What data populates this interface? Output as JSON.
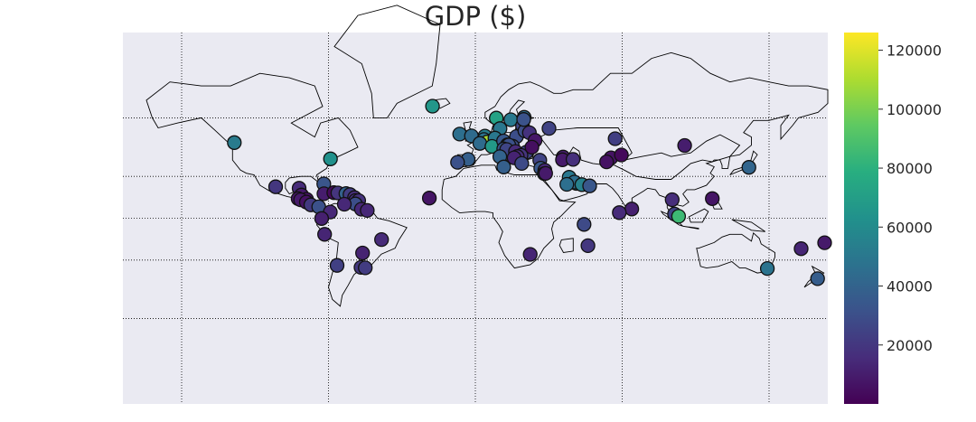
{
  "title": "GDP ($)",
  "colorbar": {
    "colormap": "viridis",
    "vmin": 0,
    "vmax": 126000,
    "ticks": [
      20000,
      40000,
      60000,
      80000,
      100000,
      120000
    ],
    "tick_labels": [
      "20000",
      "40000",
      "60000",
      "80000",
      "100000",
      "120000"
    ]
  },
  "map": {
    "projection": "mercator",
    "background": "#eaeaf2",
    "coastline_color": "#000000",
    "border_color": "#555555",
    "gridline_style": "dotted",
    "lon_range": [
      -180,
      180
    ],
    "lat_range": [
      -80,
      80
    ],
    "meridians": [
      -150,
      -75,
      0,
      75,
      150
    ],
    "parallels": [
      -60,
      -30,
      0,
      30,
      60
    ]
  },
  "chart_data": {
    "type": "scatter",
    "title": "GDP ($)",
    "xlabel": "",
    "ylabel": "",
    "x": "longitude",
    "y": "latitude",
    "color_value": "GDP ($)",
    "points": [
      {
        "lon": -21.9,
        "lat": 64.1,
        "gdp": 66000
      },
      {
        "lon": -123.1,
        "lat": 49.3,
        "gdp": 52000
      },
      {
        "lon": -74.0,
        "lat": 40.7,
        "gdp": 63000
      },
      {
        "lon": -77.4,
        "lat": 25.0,
        "gdp": 33000
      },
      {
        "lon": -90.0,
        "lat": 22.0,
        "gdp": 15000
      },
      {
        "lon": -102.0,
        "lat": 23.0,
        "gdp": 20000
      },
      {
        "lon": -88.8,
        "lat": 17.2,
        "gdp": 9000
      },
      {
        "lon": -90.5,
        "lat": 14.6,
        "gdp": 8000
      },
      {
        "lon": -86.2,
        "lat": 14.1,
        "gdp": 6000
      },
      {
        "lon": -89.2,
        "lat": 13.7,
        "gdp": 9000
      },
      {
        "lon": -86.3,
        "lat": 12.1,
        "gdp": 6000
      },
      {
        "lon": -84.0,
        "lat": 10.0,
        "gdp": 21000
      },
      {
        "lon": -80.0,
        "lat": 8.5,
        "gdp": 31000
      },
      {
        "lon": -77.3,
        "lat": 18.1,
        "gdp": 10000
      },
      {
        "lon": -72.3,
        "lat": 18.9,
        "gdp": 3000
      },
      {
        "lon": -70.2,
        "lat": 18.7,
        "gdp": 19000
      },
      {
        "lon": -66.1,
        "lat": 18.2,
        "gdp": 39000
      },
      {
        "lon": -64.0,
        "lat": 17.5,
        "gdp": 22000
      },
      {
        "lon": -61.7,
        "lat": 15.3,
        "gdp": 16000
      },
      {
        "lon": -61.2,
        "lat": 13.2,
        "gdp": 17000
      },
      {
        "lon": -59.6,
        "lat": 13.1,
        "gdp": 18000
      },
      {
        "lon": -61.3,
        "lat": 10.7,
        "gdp": 30000
      },
      {
        "lon": -66.9,
        "lat": 10.5,
        "gdp": 14000
      },
      {
        "lon": -58.2,
        "lat": 6.8,
        "gdp": 14000
      },
      {
        "lon": -55.2,
        "lat": 5.8,
        "gdp": 14000
      },
      {
        "lon": -74.1,
        "lat": 4.7,
        "gdp": 14000
      },
      {
        "lon": -78.5,
        "lat": -0.2,
        "gdp": 11000
      },
      {
        "lon": -77.0,
        "lat": -12.0,
        "gdp": 13000
      },
      {
        "lon": -47.9,
        "lat": -15.8,
        "gdp": 15000
      },
      {
        "lon": -57.6,
        "lat": -25.3,
        "gdp": 12000
      },
      {
        "lon": -70.6,
        "lat": -33.4,
        "gdp": 24000
      },
      {
        "lon": -58.4,
        "lat": -34.6,
        "gdp": 20000
      },
      {
        "lon": -56.2,
        "lat": -34.9,
        "gdp": 22000
      },
      {
        "lon": -8.0,
        "lat": 53.3,
        "gdp": 46000
      },
      {
        "lon": -2.0,
        "lat": 52.5,
        "gdp": 44000
      },
      {
        "lon": 10.7,
        "lat": 59.9,
        "gdp": 72000
      },
      {
        "lon": 18.1,
        "lat": 59.3,
        "gdp": 51000
      },
      {
        "lon": 24.9,
        "lat": 60.2,
        "gdp": 45000
      },
      {
        "lon": 4.9,
        "lat": 52.4,
        "gdp": 53000
      },
      {
        "lon": 4.4,
        "lat": 50.8,
        "gdp": 48000
      },
      {
        "lon": 6.1,
        "lat": 49.6,
        "gdp": 110000
      },
      {
        "lon": 2.3,
        "lat": 48.9,
        "gdp": 44000
      },
      {
        "lon": 12.6,
        "lat": 55.7,
        "gdp": 50000
      },
      {
        "lon": 10.0,
        "lat": 51.5,
        "gdp": 50000
      },
      {
        "lon": 8.5,
        "lat": 47.4,
        "gdp": 68000
      },
      {
        "lon": 14.4,
        "lat": 50.1,
        "gdp": 35000
      },
      {
        "lon": 16.4,
        "lat": 48.2,
        "gdp": 52000
      },
      {
        "lon": 21.0,
        "lat": 52.2,
        "gdp": 30000
      },
      {
        "lon": 19.0,
        "lat": 47.5,
        "gdp": 30000
      },
      {
        "lon": 17.1,
        "lat": 48.1,
        "gdp": 31000
      },
      {
        "lon": 14.5,
        "lat": 46.1,
        "gdp": 34000
      },
      {
        "lon": 16.0,
        "lat": 45.8,
        "gdp": 26000
      },
      {
        "lon": 20.5,
        "lat": 44.8,
        "gdp": 15000
      },
      {
        "lon": 26.1,
        "lat": 44.4,
        "gdp": 25000
      },
      {
        "lon": 23.3,
        "lat": 42.7,
        "gdp": 19000
      },
      {
        "lon": 21.4,
        "lat": 42.0,
        "gdp": 15000
      },
      {
        "lon": 19.8,
        "lat": 41.3,
        "gdp": 12000
      },
      {
        "lon": 12.5,
        "lat": 41.9,
        "gdp": 40000
      },
      {
        "lon": -3.7,
        "lat": 40.4,
        "gdp": 38000
      },
      {
        "lon": -9.1,
        "lat": 38.7,
        "gdp": 31000
      },
      {
        "lon": 14.5,
        "lat": 35.9,
        "gdp": 38000
      },
      {
        "lon": 23.7,
        "lat": 38.0,
        "gdp": 28000
      },
      {
        "lon": 24.1,
        "lat": 56.9,
        "gdp": 27000
      },
      {
        "lon": 25.3,
        "lat": 54.7,
        "gdp": 30000
      },
      {
        "lon": 24.7,
        "lat": 59.4,
        "gdp": 32000
      },
      {
        "lon": 27.6,
        "lat": 53.9,
        "gdp": 18000
      },
      {
        "lon": 30.5,
        "lat": 50.4,
        "gdp": 8000
      },
      {
        "lon": 28.9,
        "lat": 47.0,
        "gdp": 5000
      },
      {
        "lon": 37.6,
        "lat": 55.8,
        "gdp": 25000
      },
      {
        "lon": 32.9,
        "lat": 39.9,
        "gdp": 25000
      },
      {
        "lon": 44.8,
        "lat": 41.7,
        "gdp": 10000
      },
      {
        "lon": 44.5,
        "lat": 40.2,
        "gdp": 9000
      },
      {
        "lon": 49.9,
        "lat": 40.4,
        "gdp": 17000
      },
      {
        "lon": 33.4,
        "lat": 35.2,
        "gdp": 34000
      },
      {
        "lon": 35.5,
        "lat": 33.9,
        "gdp": 14000
      },
      {
        "lon": 35.2,
        "lat": 31.8,
        "gdp": 36000
      },
      {
        "lon": 35.9,
        "lat": 31.9,
        "gdp": 9000
      },
      {
        "lon": 51.5,
        "lat": 25.3,
        "gdp": 60000
      },
      {
        "lon": 47.9,
        "lat": 29.4,
        "gdp": 50000
      },
      {
        "lon": 50.6,
        "lat": 26.2,
        "gdp": 45000
      },
      {
        "lon": 54.4,
        "lat": 24.5,
        "gdp": 55000
      },
      {
        "lon": 46.7,
        "lat": 24.7,
        "gdp": 46000
      },
      {
        "lon": 58.4,
        "lat": 23.6,
        "gdp": 34000
      },
      {
        "lon": 69.3,
        "lat": 41.3,
        "gdp": 6000
      },
      {
        "lon": 74.6,
        "lat": 42.9,
        "gdp": 3000
      },
      {
        "lon": 71.4,
        "lat": 51.2,
        "gdp": 23000
      },
      {
        "lon": 106.9,
        "lat": 47.9,
        "gdp": 10000
      },
      {
        "lon": 67.0,
        "lat": 39.0,
        "gdp": 6000
      },
      {
        "lon": 79.9,
        "lat": 6.9,
        "gdp": 11000
      },
      {
        "lon": 73.5,
        "lat": 4.2,
        "gdp": 15000
      },
      {
        "lon": 100.5,
        "lat": 13.8,
        "gdp": 16000
      },
      {
        "lon": 101.7,
        "lat": 3.1,
        "gdp": 25000
      },
      {
        "lon": 103.8,
        "lat": 1.4,
        "gdp": 85000
      },
      {
        "lon": 121.0,
        "lat": 14.6,
        "gdp": 7000
      },
      {
        "lon": 139.7,
        "lat": 35.7,
        "gdp": 41000
      },
      {
        "lon": 149.1,
        "lat": -35.3,
        "gdp": 48000
      },
      {
        "lon": 174.8,
        "lat": -41.3,
        "gdp": 37000
      },
      {
        "lon": 166.4,
        "lat": -22.3,
        "gdp": 13000
      },
      {
        "lon": 178.4,
        "lat": -18.1,
        "gdp": 9000
      },
      {
        "lon": 57.5,
        "lat": -20.2,
        "gdp": 20000
      },
      {
        "lon": 55.5,
        "lat": -4.6,
        "gdp": 28000
      },
      {
        "lon": -23.5,
        "lat": 15.0,
        "gdp": 7000
      },
      {
        "lon": 28.0,
        "lat": -26.2,
        "gdp": 13000
      }
    ]
  }
}
